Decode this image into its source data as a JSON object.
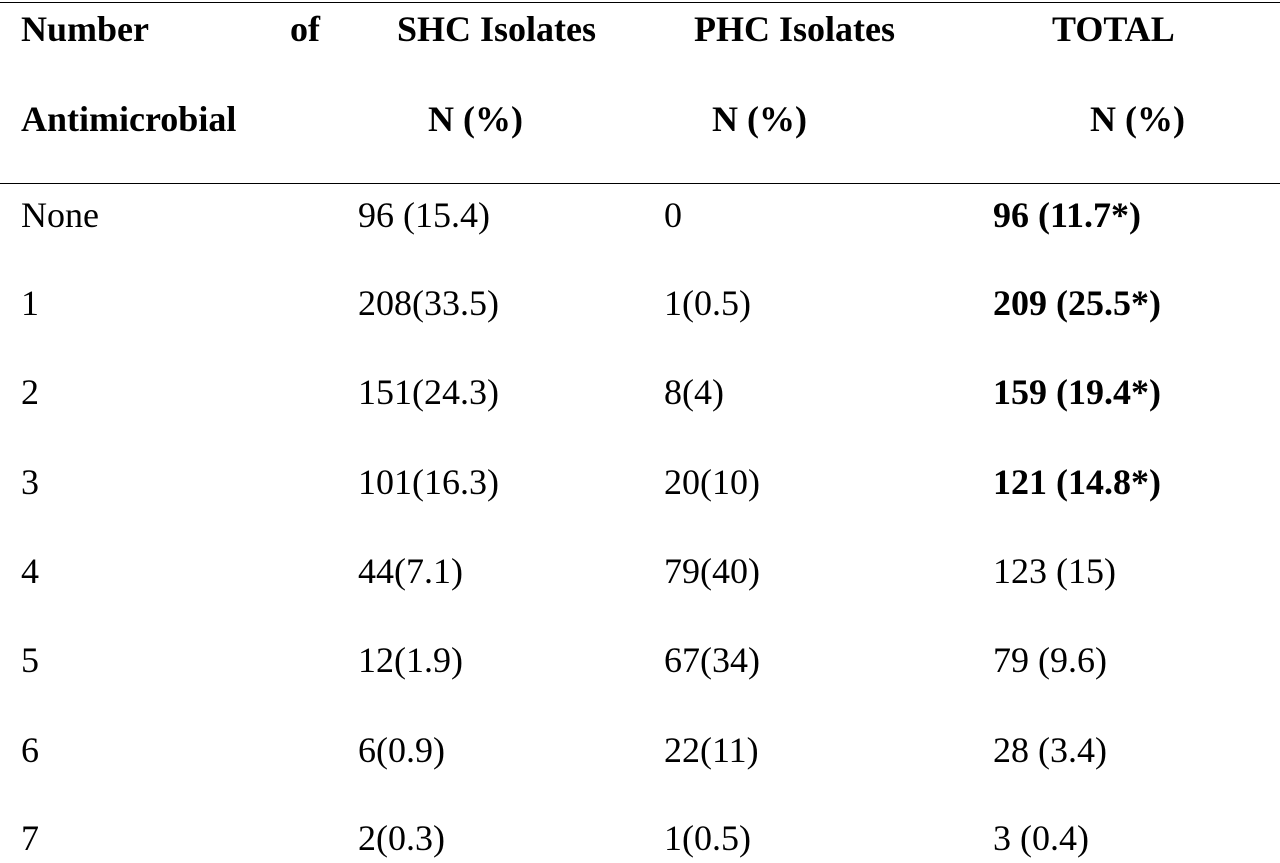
{
  "table": {
    "header": {
      "col1_word1": "Number",
      "col1_word2": "of",
      "col1_line2": "Antimicrobial",
      "col2_line1": "SHC Isolates",
      "col2_line2": "N (%)",
      "col3_line1": "PHC Isolates",
      "col3_line2": "N (%)",
      "col4_line1": "TOTAL",
      "col4_line2": "N (%)"
    },
    "rows": [
      {
        "count": "None",
        "shc": "96 (15.4)",
        "phc": "0",
        "total": "96 (11.7*)",
        "total_bold": true
      },
      {
        "count": "1",
        "shc": "208(33.5)",
        "phc": "1(0.5)",
        "total": "209 (25.5*)",
        "total_bold": true
      },
      {
        "count": "2",
        "shc": "151(24.3)",
        "phc": "8(4)",
        "total": "159 (19.4*)",
        "total_bold": true
      },
      {
        "count": "3",
        "shc": "101(16.3)",
        "phc": "20(10)",
        "total": "121 (14.8*)",
        "total_bold": true
      },
      {
        "count": "4",
        "shc": "44(7.1)",
        "phc": "79(40)",
        "total": "123 (15)",
        "total_bold": false
      },
      {
        "count": "5",
        "shc": "12(1.9)",
        "phc": "67(34)",
        "total": "79 (9.6)",
        "total_bold": false
      },
      {
        "count": "6",
        "shc": "6(0.9)",
        "phc": "22(11)",
        "total": "28 (3.4)",
        "total_bold": false
      },
      {
        "count": "7",
        "shc": "2(0.3)",
        "phc": "1(0.5)",
        "total": "3 (0.4)",
        "total_bold": false
      }
    ]
  }
}
